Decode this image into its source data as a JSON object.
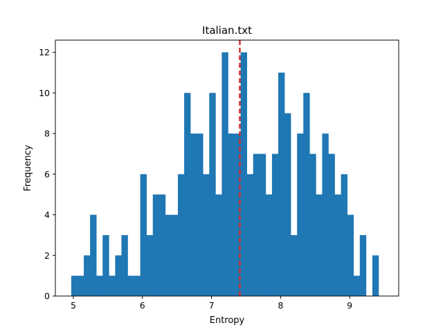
{
  "chart_data": {
    "type": "bar",
    "title": "Italian.txt",
    "xlabel": "Entropy",
    "ylabel": "Frequency",
    "xlim": [
      4.74,
      9.71
    ],
    "ylim": [
      0,
      12.6
    ],
    "xticks": [
      5,
      6,
      7,
      8,
      9
    ],
    "yticks": [
      0,
      2,
      4,
      6,
      8,
      10,
      12
    ],
    "grid": false,
    "bin_start": 4.97,
    "bin_width": 0.0908,
    "values": [
      1,
      1,
      2,
      4,
      1,
      3,
      1,
      2,
      3,
      1,
      1,
      6,
      3,
      5,
      5,
      4,
      4,
      6,
      10,
      8,
      8,
      6,
      10,
      5,
      12,
      8,
      8,
      12,
      6,
      7,
      7,
      5,
      7,
      11,
      9,
      3,
      8,
      10,
      7,
      5,
      8,
      7,
      5,
      6,
      4,
      1,
      3,
      0,
      2
    ],
    "bar_color": "#1f77b4",
    "reference_line": {
      "x": 7.41,
      "color": "#d62728",
      "style": "dashed"
    }
  }
}
